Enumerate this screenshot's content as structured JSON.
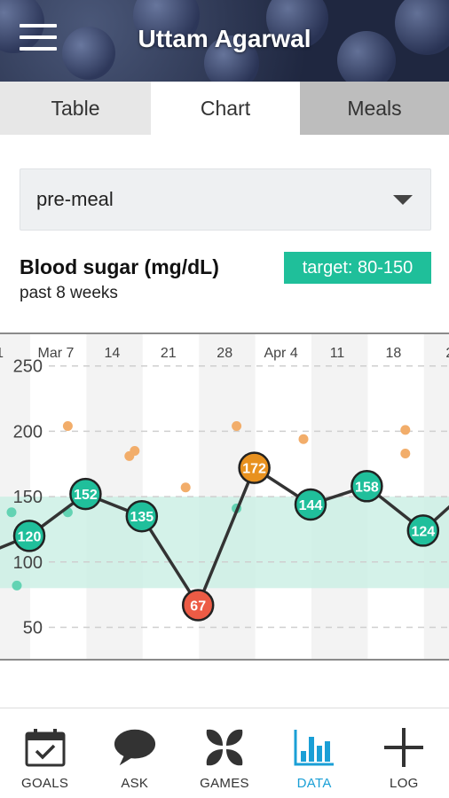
{
  "header": {
    "title": "Uttam Agarwal"
  },
  "tabs": [
    {
      "label": "Table"
    },
    {
      "label": "Chart"
    },
    {
      "label": "Meals"
    }
  ],
  "filter": {
    "selected": "pre-meal"
  },
  "chart_header": {
    "title": "Blood sugar (mg/dL)",
    "subtitle": "past 8 weeks",
    "target_label": "target: 80-150"
  },
  "chart_data": {
    "type": "line",
    "x_tick_labels": [
      "1",
      "Mar 7",
      "14",
      "21",
      "28",
      "Apr 4",
      "11",
      "18",
      "2"
    ],
    "y_ticks": [
      50,
      100,
      150,
      200,
      250
    ],
    "ylim": [
      30,
      262
    ],
    "target_range": [
      80,
      150
    ],
    "weekly_averages": [
      120,
      152,
      135,
      67,
      172,
      144,
      158,
      124
    ],
    "readings": [
      {
        "week": 0,
        "value": 138
      },
      {
        "week": 0,
        "value": 82
      },
      {
        "week": 1,
        "value": 204
      },
      {
        "week": 1,
        "value": 138
      },
      {
        "week": 2,
        "value": 185
      },
      {
        "week": 2,
        "value": 181
      },
      {
        "week": 3,
        "value": 157
      },
      {
        "week": 3,
        "value": 62
      },
      {
        "week": 4,
        "value": 204
      },
      {
        "week": 4,
        "value": 141
      },
      {
        "week": 5,
        "value": 194
      },
      {
        "week": 5,
        "value": 143
      },
      {
        "week": 7,
        "value": 201
      },
      {
        "week": 7,
        "value": 183
      },
      {
        "week": 7,
        "value": 125
      }
    ],
    "colors": {
      "in_range": "#20bf9b",
      "high": "#e8911f",
      "low": "#ec5b45",
      "high_dot": "#f2ad6a",
      "low_dot": "#ec7a6a",
      "in_range_dot": "#63d3b3",
      "target_band": "#c9efe4",
      "line": "#333333"
    },
    "grid": true
  },
  "nav": [
    {
      "label": "GOALS",
      "icon": "calendar-check-icon"
    },
    {
      "label": "ASK",
      "icon": "speech-bubble-icon"
    },
    {
      "label": "GAMES",
      "icon": "petals-icon"
    },
    {
      "label": "DATA",
      "icon": "bar-chart-icon",
      "active": true
    },
    {
      "label": "LOG",
      "icon": "plus-icon"
    }
  ],
  "accent": "#1a9fd6"
}
